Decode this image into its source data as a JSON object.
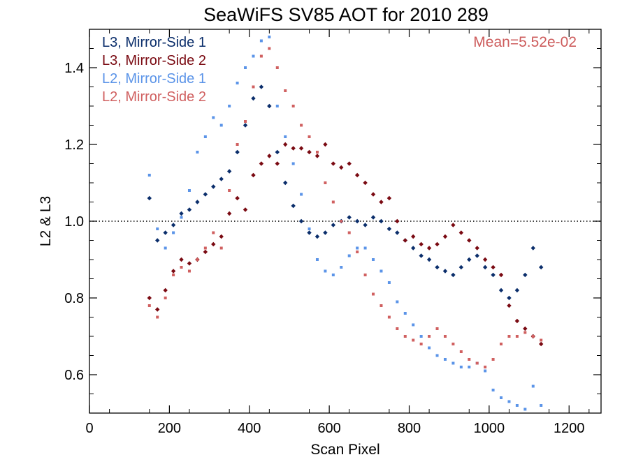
{
  "chart_data": {
    "type": "scatter",
    "title": "SeaWiFS SV85 AOT for 2010 289",
    "xlabel": "Scan Pixel",
    "ylabel": "L2 & L3",
    "xlim": [
      0,
      1280
    ],
    "ylim": [
      0.5,
      1.5
    ],
    "xticks": [
      "0",
      "200",
      "400",
      "600",
      "800",
      "1000",
      "1200"
    ],
    "yticks": [
      "0.6",
      "0.8",
      "1.0",
      "1.2",
      "1.4"
    ],
    "reference_line": 1.0,
    "annotation": "Mean=5.52e-02",
    "annotation_color": "#cd5c5c",
    "legend_position": "top-left",
    "series": [
      {
        "name": "L3, Mirror-Side 1",
        "color": "#0b2e6b",
        "x": [
          150,
          170,
          190,
          210,
          230,
          250,
          270,
          290,
          310,
          330,
          350,
          370,
          390,
          410,
          430,
          450,
          470,
          490,
          510,
          530,
          550,
          570,
          590,
          610,
          630,
          650,
          670,
          690,
          710,
          730,
          750,
          770,
          790,
          810,
          830,
          850,
          870,
          890,
          910,
          930,
          950,
          970,
          990,
          1010,
          1030,
          1050,
          1070,
          1090,
          1110,
          1130
        ],
        "y": [
          1.06,
          0.95,
          0.97,
          0.99,
          1.02,
          1.03,
          1.05,
          1.07,
          1.09,
          1.11,
          1.13,
          1.18,
          1.25,
          1.32,
          1.35,
          1.3,
          1.18,
          1.1,
          1.04,
          1.0,
          0.97,
          0.96,
          0.97,
          0.99,
          1.0,
          1.01,
          1.0,
          0.99,
          1.01,
          1.0,
          0.98,
          0.97,
          0.95,
          0.93,
          0.91,
          0.9,
          0.88,
          0.87,
          0.86,
          0.88,
          0.9,
          0.91,
          0.88,
          0.86,
          0.82,
          0.8,
          0.82,
          0.86,
          0.93,
          0.88
        ]
      },
      {
        "name": "L3, Mirror-Side 2",
        "color": "#7a0a12",
        "x": [
          150,
          170,
          190,
          210,
          230,
          250,
          270,
          290,
          310,
          330,
          350,
          370,
          390,
          410,
          430,
          450,
          470,
          490,
          510,
          530,
          550,
          570,
          590,
          610,
          630,
          650,
          670,
          690,
          710,
          730,
          750,
          770,
          790,
          810,
          830,
          850,
          870,
          890,
          910,
          930,
          950,
          970,
          990,
          1010,
          1030,
          1050,
          1070,
          1090,
          1110,
          1130
        ],
        "y": [
          0.8,
          0.77,
          0.82,
          0.87,
          0.9,
          0.89,
          0.9,
          0.92,
          0.94,
          0.96,
          1.02,
          1.06,
          1.03,
          1.12,
          1.15,
          1.17,
          1.15,
          1.2,
          1.19,
          1.19,
          1.18,
          1.17,
          1.2,
          1.15,
          1.14,
          1.15,
          1.12,
          1.1,
          1.07,
          1.05,
          1.06,
          1.0,
          0.95,
          0.96,
          0.94,
          0.93,
          0.94,
          0.96,
          0.99,
          0.97,
          0.95,
          0.93,
          0.9,
          0.88,
          0.86,
          0.78,
          0.74,
          0.72,
          0.7,
          0.68
        ]
      },
      {
        "name": "L2, Mirror-Side 1",
        "color": "#5b94e8",
        "x": [
          150,
          170,
          190,
          210,
          230,
          250,
          270,
          290,
          310,
          330,
          350,
          370,
          390,
          410,
          430,
          450,
          470,
          490,
          510,
          530,
          550,
          570,
          590,
          610,
          630,
          650,
          670,
          690,
          710,
          730,
          750,
          770,
          790,
          810,
          830,
          850,
          870,
          890,
          910,
          930,
          950,
          970,
          990,
          1010,
          1030,
          1050,
          1070,
          1090,
          1110,
          1130
        ],
        "y": [
          1.12,
          0.98,
          0.93,
          0.97,
          1.01,
          1.08,
          1.18,
          1.22,
          1.27,
          1.25,
          1.3,
          1.36,
          1.4,
          1.43,
          1.47,
          1.48,
          1.3,
          1.22,
          1.15,
          1.07,
          0.98,
          0.9,
          0.87,
          0.86,
          0.88,
          0.91,
          0.93,
          0.93,
          0.9,
          0.87,
          0.84,
          0.79,
          0.76,
          0.73,
          0.7,
          0.67,
          0.65,
          0.64,
          0.63,
          0.62,
          0.62,
          0.63,
          0.61,
          0.56,
          0.54,
          0.53,
          0.52,
          0.51,
          0.57,
          0.52
        ]
      },
      {
        "name": "L2, Mirror-Side 2",
        "color": "#d06060",
        "x": [
          150,
          170,
          190,
          210,
          230,
          250,
          270,
          290,
          310,
          330,
          350,
          370,
          390,
          410,
          430,
          450,
          470,
          490,
          510,
          530,
          550,
          570,
          590,
          610,
          630,
          650,
          670,
          690,
          710,
          730,
          750,
          770,
          790,
          810,
          830,
          850,
          870,
          890,
          910,
          930,
          950,
          970,
          990,
          1010,
          1030,
          1050,
          1070,
          1090,
          1110,
          1130
        ],
        "y": [
          0.78,
          0.75,
          0.8,
          0.86,
          0.88,
          0.87,
          0.9,
          0.93,
          0.97,
          0.93,
          1.08,
          1.2,
          1.26,
          1.35,
          1.43,
          1.45,
          1.4,
          1.34,
          1.3,
          1.25,
          1.22,
          1.18,
          1.1,
          1.05,
          1.0,
          0.97,
          0.92,
          0.86,
          0.81,
          0.78,
          0.75,
          0.72,
          0.7,
          0.69,
          0.68,
          0.7,
          0.72,
          0.7,
          0.68,
          0.66,
          0.64,
          0.63,
          0.62,
          0.64,
          0.68,
          0.7,
          0.7,
          0.71,
          0.7,
          0.69
        ]
      }
    ]
  }
}
